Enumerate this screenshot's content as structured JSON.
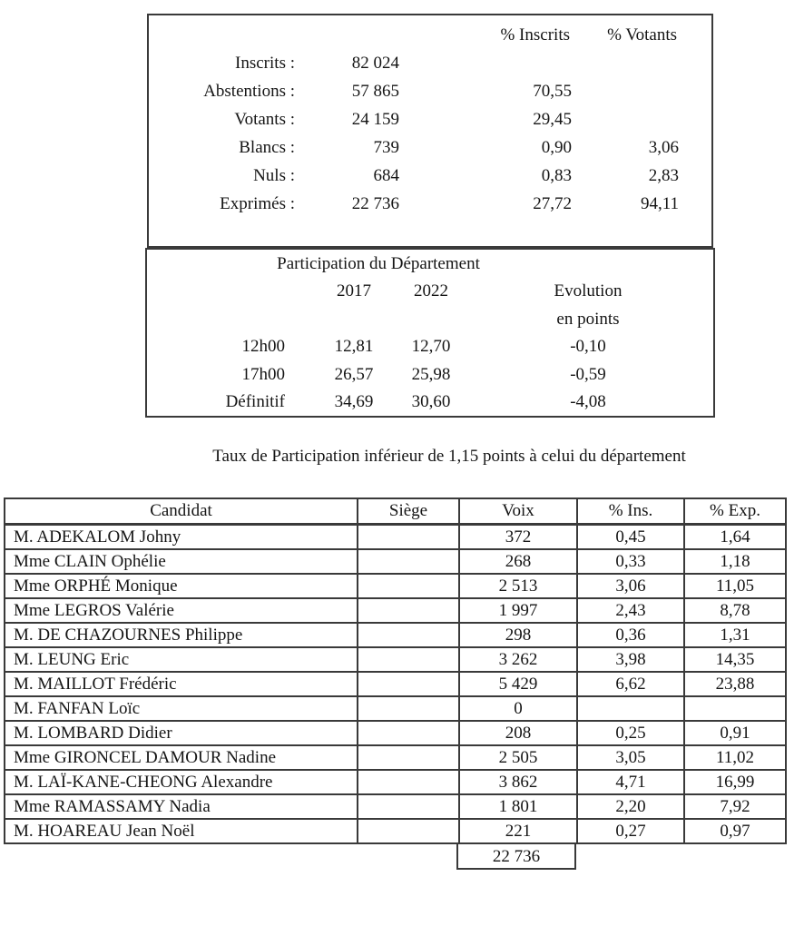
{
  "page": {
    "background": "#ffffff",
    "text_color": "#151515",
    "border_color": "#3a3a3a"
  },
  "summary_table": {
    "col_headers": [
      "% Inscrits",
      "% Votants"
    ],
    "rows": [
      {
        "label": "Inscrits :",
        "count": "82 024",
        "pct_inscrits": "",
        "pct_votants": ""
      },
      {
        "label": "Abstentions :",
        "count": "57 865",
        "pct_inscrits": "70,55",
        "pct_votants": ""
      },
      {
        "label": "Votants :",
        "count": "24 159",
        "pct_inscrits": "29,45",
        "pct_votants": ""
      },
      {
        "label": "Blancs :",
        "count": "739",
        "pct_inscrits": "0,90",
        "pct_votants": "3,06"
      },
      {
        "label": "Nuls :",
        "count": "684",
        "pct_inscrits": "0,83",
        "pct_votants": "2,83"
      },
      {
        "label": "Exprimés :",
        "count": "22 736",
        "pct_inscrits": "27,72",
        "pct_votants": "94,11"
      }
    ]
  },
  "participation_table": {
    "title": "Participation du Département",
    "year_2017": "2017",
    "year_2022": "2022",
    "evolution_line1": "Evolution",
    "evolution_line2": "en points",
    "rows": [
      {
        "label": "12h00",
        "v2017": "12,81",
        "v2022": "12,70",
        "evolution": "-0,10"
      },
      {
        "label": "17h00",
        "v2017": "26,57",
        "v2022": "25,98",
        "evolution": "-0,59"
      },
      {
        "label": "Définitif",
        "v2017": "34,69",
        "v2022": "30,60",
        "evolution": "-4,08"
      }
    ]
  },
  "note": "Taux de Participation inférieur de 1,15 points à celui du département",
  "results_table": {
    "headers": [
      "Candidat",
      "Siège",
      "Voix",
      "% Ins.",
      "% Exp."
    ],
    "rows": [
      {
        "candidat": "M. ADEKALOM Johny",
        "siege": "",
        "voix": "372",
        "pct_ins": "0,45",
        "pct_exp": "1,64"
      },
      {
        "candidat": "Mme CLAIN Ophélie",
        "siege": "",
        "voix": "268",
        "pct_ins": "0,33",
        "pct_exp": "1,18"
      },
      {
        "candidat": "Mme ORPHÉ Monique",
        "siege": "",
        "voix": "2 513",
        "pct_ins": "3,06",
        "pct_exp": "11,05"
      },
      {
        "candidat": "Mme LEGROS Valérie",
        "siege": "",
        "voix": "1 997",
        "pct_ins": "2,43",
        "pct_exp": "8,78"
      },
      {
        "candidat": "M. DE CHAZOURNES Philippe",
        "siege": "",
        "voix": "298",
        "pct_ins": "0,36",
        "pct_exp": "1,31"
      },
      {
        "candidat": "M. LEUNG Eric",
        "siege": "",
        "voix": "3 262",
        "pct_ins": "3,98",
        "pct_exp": "14,35"
      },
      {
        "candidat": "M. MAILLOT Frédéric",
        "siege": "",
        "voix": "5 429",
        "pct_ins": "6,62",
        "pct_exp": "23,88"
      },
      {
        "candidat": "M. FANFAN Loïc",
        "siege": "",
        "voix": "0",
        "pct_ins": "",
        "pct_exp": ""
      },
      {
        "candidat": "M. LOMBARD Didier",
        "siege": "",
        "voix": "208",
        "pct_ins": "0,25",
        "pct_exp": "0,91"
      },
      {
        "candidat": "Mme GIRONCEL DAMOUR Nadine",
        "siege": "",
        "voix": "2 505",
        "pct_ins": "3,05",
        "pct_exp": "11,02"
      },
      {
        "candidat": "M. LAÏ-KANE-CHEONG Alexandre",
        "siege": "",
        "voix": "3 862",
        "pct_ins": "4,71",
        "pct_exp": "16,99"
      },
      {
        "candidat": "Mme RAMASSAMY Nadia",
        "siege": "",
        "voix": "1 801",
        "pct_ins": "2,20",
        "pct_exp": "7,92"
      },
      {
        "candidat": "M. HOAREAU Jean Noël",
        "siege": "",
        "voix": "221",
        "pct_ins": "0,27",
        "pct_exp": "0,97"
      }
    ],
    "total_voix": "22 736"
  }
}
